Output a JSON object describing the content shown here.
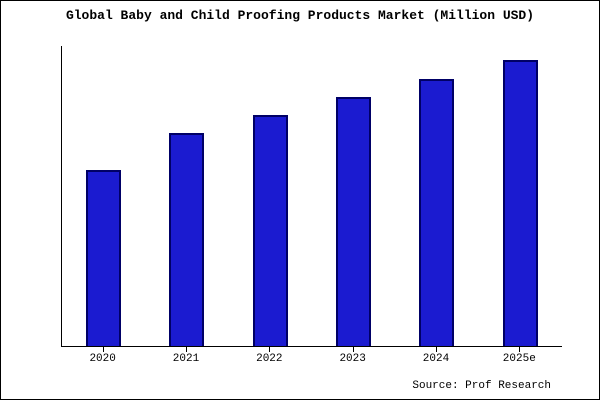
{
  "title": "Global Baby and Child Proofing Products Market (Million USD)",
  "source": {
    "text": "Source: Prof Research"
  },
  "colors": {
    "bar_fill": "#1b1bd0",
    "bar_edge": "#000066",
    "axis": "#000000",
    "background": "#ffffff",
    "frame_border": "#000000"
  },
  "chart_data": {
    "type": "bar",
    "title": "Global Baby and Child Proofing Products Market (Million USD)",
    "categories": [
      "2020",
      "2021",
      "2022",
      "2023",
      "2024",
      "2025e"
    ],
    "values": [
      61.5,
      74.5,
      81,
      87,
      93.5,
      100
    ],
    "value_note": "relative estimates; no y-axis tick labels are shown in the chart",
    "xlabel": "",
    "ylabel": "",
    "ylim": [
      0,
      105
    ],
    "grid": false,
    "legend": false,
    "annotations": [
      "Source: Prof Research"
    ]
  }
}
